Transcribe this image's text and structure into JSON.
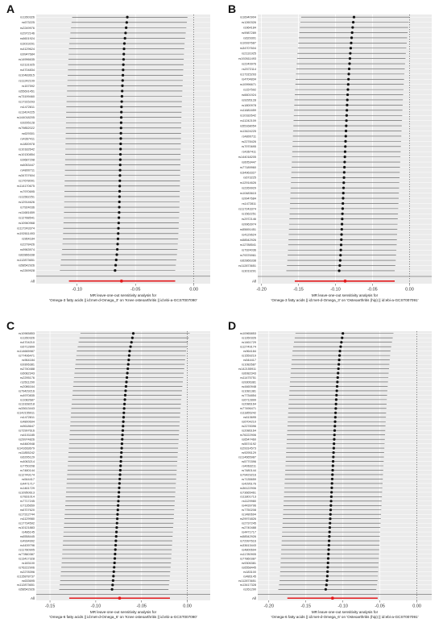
{
  "panels": [
    {
      "letter": "A",
      "xlabel": "MR leave-one-out sensitivity analysis for\n'Omega-3 fatty acids || id:met-d-Omega_3' on 'Knee osteoarthritis || id:ebi-a-GCST007090'",
      "ticks": [
        "-0.10",
        "-0.05",
        "0.00"
      ],
      "tick_values": [
        -0.1,
        -0.05,
        0.0
      ],
      "xlim": [
        -0.135,
        0.014
      ],
      "overall_label": "All",
      "snps": [
        "rs1260326",
        "rs673225",
        "rs2249976",
        "rs2972146",
        "rs6601924",
        "rs3019291",
        "rs4129624",
        "rs9947684",
        "rs14996635",
        "rs2131925",
        "rs4704834",
        "rs10483615",
        "rs11242109",
        "rs157592",
        "rs55691451",
        "rs73199460",
        "rs17315293",
        "rs1472811",
        "rs13424225",
        "rs144018205",
        "rs9295128",
        "rs79852022",
        "rs629301",
        "rs4367411",
        "rs1800978",
        "rs10182642",
        "rs10130854",
        "rs9687298",
        "rs6053447",
        "rs4800711",
        "rs34707604",
        "rs17678091",
        "rs114170675",
        "rs7970695",
        "rs11562251",
        "rs12914626",
        "rs7924036",
        "rs11681659",
        "rs12788541",
        "rs10940968",
        "rs117243374",
        "rs192611493",
        "rs964184",
        "rs2278426",
        "rs9963974",
        "rs62866338",
        "rs112873651",
        "rs58542926",
        "rs2269928"
      ],
      "estimates": [
        -0.057,
        -0.0575,
        -0.058,
        -0.0585,
        -0.059,
        -0.0595,
        -0.0598,
        -0.06,
        -0.0602,
        -0.0604,
        -0.0606,
        -0.0608,
        -0.061,
        -0.0612,
        -0.0614,
        -0.0616,
        -0.0618,
        -0.062,
        -0.0621,
        -0.0622,
        -0.0623,
        -0.0624,
        -0.0625,
        -0.0626,
        -0.0627,
        -0.0628,
        -0.0629,
        -0.063,
        -0.0631,
        -0.0632,
        -0.0633,
        -0.0634,
        -0.0635,
        -0.0636,
        -0.0637,
        -0.0638,
        -0.0639,
        -0.064,
        -0.0642,
        -0.0644,
        -0.0646,
        -0.0648,
        -0.065,
        -0.0653,
        -0.0656,
        -0.066,
        -0.0665,
        -0.067,
        -0.0675
      ],
      "overall": {
        "estimate": -0.062,
        "lower": -0.107,
        "upper": -0.016
      }
    },
    {
      "letter": "B",
      "xlabel": "MR leave-one-out sensitivity analysis for\n'Omega-3 fatty acids || id:met-d-Omega_3' on 'Osteoarthritis (hip) || id:ebi-a-GCST007091'",
      "ticks": [
        "-0.20",
        "-0.15",
        "-0.10",
        "-0.05",
        "0.00"
      ],
      "tick_values": [
        -0.2,
        -0.15,
        -0.1,
        -0.05,
        0.0
      ],
      "xlim": [
        -0.205,
        0.03
      ],
      "overall_label": "All",
      "snps": [
        "rs16940904",
        "rs1260326",
        "rs964184",
        "rs9987289",
        "rs629301",
        "rs10937687",
        "rs34707604",
        "rs2131925",
        "rs192611493",
        "rs2249976",
        "rs2072114",
        "rs17315293",
        "rs4704834",
        "rs10996671",
        "rs157592",
        "rs6601924",
        "rs9295128",
        "rs1800978",
        "rs11681659",
        "rs10182642",
        "rs11242109",
        "rs55168054",
        "rs13424225",
        "rs4800711",
        "rs2278426",
        "rs7970695",
        "rs4367411",
        "rs144018205",
        "rs6053447",
        "rs77189960",
        "rs34963327",
        "rs673225",
        "rs12914626",
        "rs2269929",
        "rs10483615",
        "rs9947684",
        "rs1472811",
        "rs117243374",
        "rs1562251",
        "rs2972146",
        "rs9963974",
        "rs55691451",
        "rs4129624",
        "rs58542926",
        "rs12788541",
        "rs7924036",
        "rs79376961",
        "rs62866338",
        "rs112873651",
        "rs3019291"
      ],
      "estimates": [
        -0.075,
        -0.076,
        -0.0768,
        -0.0775,
        -0.0782,
        -0.0788,
        -0.0794,
        -0.08,
        -0.0805,
        -0.081,
        -0.0815,
        -0.082,
        -0.0824,
        -0.0828,
        -0.0832,
        -0.0836,
        -0.084,
        -0.0843,
        -0.0846,
        -0.0849,
        -0.0852,
        -0.0855,
        -0.0858,
        -0.0861,
        -0.0864,
        -0.0867,
        -0.087,
        -0.0873,
        -0.0876,
        -0.0879,
        -0.0882,
        -0.0885,
        -0.0888,
        -0.0891,
        -0.0894,
        -0.0897,
        -0.09,
        -0.0903,
        -0.0906,
        -0.0909,
        -0.0912,
        -0.0915,
        -0.0918,
        -0.0921,
        -0.0924,
        -0.0928,
        -0.0932,
        -0.0936,
        -0.0942,
        -0.095
      ],
      "overall": {
        "estimate": -0.087,
        "lower": -0.155,
        "upper": -0.02
      }
    },
    {
      "letter": "C",
      "xlabel": "MR leave-one-out sensitivity analysis for\n'Omega-6 fatty acids || id:met-d-Omega_6' on 'Knee osteoarthritis || id:ebi-a-GCST007090'",
      "ticks": [
        "-0.15",
        "-0.10",
        "-0.05",
        "0.00"
      ],
      "tick_values": [
        -0.15,
        -0.1,
        -0.05,
        0.0
      ],
      "xlim": [
        -0.165,
        0.025
      ],
      "overall_label": "All",
      "snps": [
        "rs10965853",
        "rs1260326",
        "rs4704210",
        "rs6712899",
        "rs114665987",
        "rs77496471",
        "rs964184",
        "rs9306381",
        "rs2740488",
        "rs6082343",
        "rs2295176",
        "rs2611290",
        "rs2086164",
        "rs79429216",
        "rs4970835",
        "rs1082687",
        "rs13168218",
        "rs33613443",
        "rs142155911",
        "rs1472811",
        "rs4800694",
        "rs9618647",
        "rs72997616",
        "rs4101185",
        "rs29974826",
        "rs4460948",
        "rs141663679",
        "rs11855242",
        "rs6295129",
        "rs4063214",
        "rs7750208",
        "rs7480144",
        "rs12749174",
        "rs544417",
        "rs4471717",
        "rs1461729",
        "rs10950613",
        "rs7831014",
        "rs7717245",
        "rs7135659",
        "rs6707620",
        "rs17312744",
        "rs1129980",
        "rs17734592",
        "rs10121883",
        "rs486145",
        "rs6558445",
        "rs4934992",
        "rs4439796",
        "rs11780905",
        "rs77860387",
        "rs13417328",
        "rs183100",
        "rs76222906",
        "rs2278396",
        "rs115878737",
        "rs633695",
        "rs112873651",
        "rs58542926"
      ],
      "estimates": [
        -0.059,
        -0.06,
        -0.061,
        -0.062,
        -0.063,
        -0.0635,
        -0.064,
        -0.0645,
        -0.065,
        -0.0655,
        -0.066,
        -0.0665,
        -0.067,
        -0.0674,
        -0.0678,
        -0.0682,
        -0.0686,
        -0.069,
        -0.0693,
        -0.0696,
        -0.0699,
        -0.0702,
        -0.0705,
        -0.0708,
        -0.0711,
        -0.0714,
        -0.0717,
        -0.072,
        -0.0723,
        -0.0726,
        -0.0729,
        -0.0732,
        -0.0735,
        -0.0738,
        -0.0741,
        -0.0744,
        -0.0747,
        -0.075,
        -0.0753,
        -0.0756,
        -0.0759,
        -0.0762,
        -0.0765,
        -0.0768,
        -0.0771,
        -0.0774,
        -0.0777,
        -0.078,
        -0.0783,
        -0.0786,
        -0.0789,
        -0.0792,
        -0.0795,
        -0.0799,
        -0.0803,
        -0.0807,
        -0.0811,
        -0.0816,
        -0.0822
      ],
      "overall": {
        "estimate": -0.074,
        "lower": -0.129,
        "upper": -0.019
      }
    },
    {
      "letter": "D",
      "xlabel": "MR leave-one-out sensitivity analysis for\n'Omega-6 fatty acids || id:met-d-Omega_6' on 'Osteoarthritis (hip) || id:ebi-a-GCST007091'",
      "ticks": [
        "-0.20",
        "-0.15",
        "-0.10",
        "-0.05",
        "0.00"
      ],
      "tick_values": [
        -0.2,
        -0.15,
        -0.1,
        -0.05,
        0.0
      ],
      "xlim": [
        -0.215,
        0.02
      ],
      "overall_label": "All",
      "snps": [
        "rs10965853",
        "rs1260326",
        "rs1461729",
        "rs12749174",
        "rs964184",
        "rs1559219",
        "rs544417",
        "rs1082687",
        "rs142155911",
        "rs6082343",
        "rs11475751",
        "rs9306381",
        "rs4460948",
        "rs1081381",
        "rs7734854",
        "rs6712899",
        "rs2086164",
        "rs77496471",
        "rs11855242",
        "rs613695",
        "rs6704210",
        "rs2278396",
        "rs2086164",
        "rs76222906",
        "rs6547460",
        "rs5574192",
        "rs29314573",
        "rs9295129",
        "rs114665987",
        "rs5770396",
        "rs4063211",
        "rs7480144",
        "rs79429216",
        "rs7135659",
        "rs4295176",
        "rs36122906",
        "rs73665461",
        "rs11801713",
        "rs1129980",
        "rs4439796",
        "rs7750208",
        "rs1480694",
        "rs29974826",
        "rs2737245",
        "rs2740488",
        "rs4471717",
        "rs58542926",
        "rs72997616",
        "rs33613443",
        "rs4800694",
        "rs11780905",
        "rs77860387",
        "rs9306381",
        "rs6558445",
        "rs183100",
        "rs486145",
        "rs112873651",
        "rs13417328",
        "rs261290"
      ],
      "estimates": [
        -0.1,
        -0.101,
        -0.102,
        -0.103,
        -0.104,
        -0.1045,
        -0.105,
        -0.1055,
        -0.106,
        -0.1065,
        -0.107,
        -0.1074,
        -0.1078,
        -0.1082,
        -0.1086,
        -0.109,
        -0.1093,
        -0.1096,
        -0.1099,
        -0.1102,
        -0.1105,
        -0.1108,
        -0.1111,
        -0.1114,
        -0.1117,
        -0.112,
        -0.1123,
        -0.1126,
        -0.1129,
        -0.1132,
        -0.1135,
        -0.1138,
        -0.1141,
        -0.1144,
        -0.1147,
        -0.115,
        -0.1153,
        -0.1156,
        -0.1159,
        -0.1162,
        -0.1165,
        -0.1168,
        -0.1171,
        -0.1174,
        -0.1177,
        -0.118,
        -0.1183,
        -0.1186,
        -0.1189,
        -0.1192,
        -0.1195,
        -0.1198,
        -0.1201,
        -0.1204,
        -0.1207,
        -0.121,
        -0.1215,
        -0.1222,
        -0.1232
      ],
      "overall": {
        "estimate": -0.114,
        "lower": -0.175,
        "upper": -0.053
      }
    }
  ],
  "chart_data": [
    {
      "type": "forest",
      "title": "A",
      "xlabel": "MR leave-one-out sensitivity analysis for 'Omega-3 fatty acids || id:met-d-Omega_3' on 'Knee osteoarthritis || id:ebi-a-GCST007090'",
      "xlim": [
        -0.135,
        0.014
      ],
      "n_snps": 49,
      "estimate_range": [
        -0.0675,
        -0.057
      ],
      "overall_estimate": -0.062
    },
    {
      "type": "forest",
      "title": "B",
      "xlabel": "MR leave-one-out sensitivity analysis for 'Omega-3 fatty acids || id:met-d-Omega_3' on 'Osteoarthritis (hip) || id:ebi-a-GCST007091'",
      "xlim": [
        -0.205,
        0.03
      ],
      "n_snps": 50,
      "estimate_range": [
        -0.095,
        -0.075
      ],
      "overall_estimate": -0.087
    },
    {
      "type": "forest",
      "title": "C",
      "xlabel": "MR leave-one-out sensitivity analysis for 'Omega-6 fatty acids || id:met-d-Omega_6' on 'Knee osteoarthritis || id:ebi-a-GCST007090'",
      "xlim": [
        -0.165,
        0.025
      ],
      "n_snps": 59,
      "estimate_range": [
        -0.0822,
        -0.059
      ],
      "overall_estimate": -0.074
    },
    {
      "type": "forest",
      "title": "D",
      "xlabel": "MR leave-one-out sensitivity analysis for 'Omega-6 fatty acids || id:met-d-Omega_6' on 'Osteoarthritis (hip) || id:ebi-a-GCST007091'",
      "xlim": [
        -0.215,
        0.02
      ],
      "n_snps": 59,
      "estimate_range": [
        -0.1232,
        -0.1
      ],
      "overall_estimate": -0.114
    }
  ]
}
